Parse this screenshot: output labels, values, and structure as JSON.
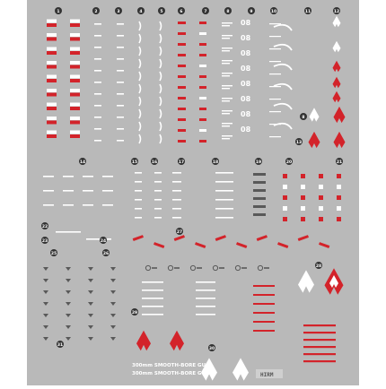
{
  "sheet": {
    "background_color": "#b9b9b9",
    "colors": {
      "white": "#ffffff",
      "red": "#d3232a",
      "gray": "#595959",
      "marker": "#333333"
    },
    "top_numbers": [
      "1",
      "2",
      "3",
      "4",
      "5",
      "6",
      "7",
      "8",
      "9",
      "10",
      "11",
      "12"
    ],
    "right_numbers": [
      "8",
      "13"
    ],
    "code_label": "08",
    "section_numbers": [
      "14",
      "15",
      "16",
      "17",
      "18",
      "19",
      "20",
      "21",
      "22",
      "23",
      "24",
      "25",
      "26",
      "27",
      "28",
      "29",
      "30",
      "31"
    ],
    "gun_text": "300mm SMOOTH-BORE GUN",
    "bottom_label": "HIRM"
  }
}
